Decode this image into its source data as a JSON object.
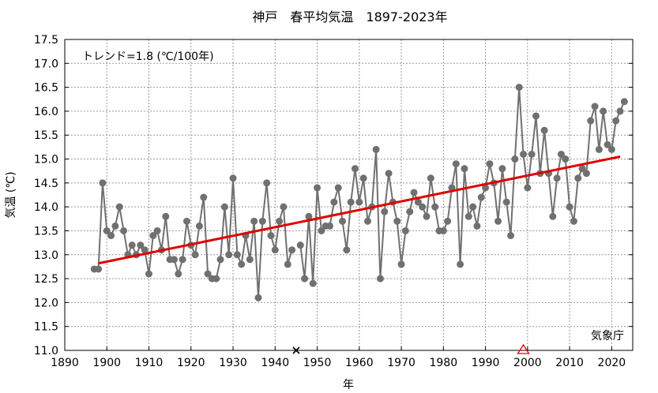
{
  "chart_data": {
    "type": "line",
    "title": "神戸　春平均気温　1897-2023年",
    "xlabel": "年",
    "ylabel": "気温 (℃)",
    "xlim": [
      1890,
      2025
    ],
    "ylim": [
      11.0,
      17.5
    ],
    "xticks": [
      1890,
      1900,
      1910,
      1920,
      1930,
      1940,
      1950,
      1960,
      1970,
      1980,
      1990,
      2000,
      2010,
      2020
    ],
    "yticks": [
      "11.0",
      "11.5",
      "12.0",
      "12.5",
      "13.0",
      "13.5",
      "14.0",
      "14.5",
      "15.0",
      "15.5",
      "16.0",
      "16.5",
      "17.0",
      "17.5"
    ],
    "grid": true,
    "trend_label": "トレンド=1.8 (℃/100年)",
    "source_label": "気象庁",
    "trend": {
      "x": [
        1898,
        2022
      ],
      "y": [
        12.82,
        15.05
      ],
      "color": "#e00000"
    },
    "series_color": "#707070",
    "markers": [
      {
        "year": 1945,
        "symbol": "×",
        "color": "#000000"
      },
      {
        "year": 1999,
        "symbol": "△",
        "color": "#e00000"
      }
    ],
    "x": [
      1897,
      1898,
      1899,
      1900,
      1901,
      1902,
      1903,
      1904,
      1905,
      1906,
      1907,
      1908,
      1909,
      1910,
      1911,
      1912,
      1913,
      1914,
      1915,
      1916,
      1917,
      1918,
      1919,
      1920,
      1921,
      1922,
      1923,
      1924,
      1925,
      1926,
      1927,
      1928,
      1929,
      1930,
      1931,
      1932,
      1933,
      1934,
      1935,
      1936,
      1937,
      1938,
      1939,
      1940,
      1941,
      1942,
      1943,
      1944,
      1945,
      1946,
      1947,
      1948,
      1949,
      1950,
      1951,
      1952,
      1953,
      1954,
      1955,
      1956,
      1957,
      1958,
      1959,
      1960,
      1961,
      1962,
      1963,
      1964,
      1965,
      1966,
      1967,
      1968,
      1969,
      1970,
      1971,
      1972,
      1973,
      1974,
      1975,
      1976,
      1977,
      1978,
      1979,
      1980,
      1981,
      1982,
      1983,
      1984,
      1985,
      1986,
      1987,
      1988,
      1989,
      1990,
      1991,
      1992,
      1993,
      1994,
      1995,
      1996,
      1997,
      1998,
      1999,
      2000,
      2001,
      2002,
      2003,
      2004,
      2005,
      2006,
      2007,
      2008,
      2009,
      2010,
      2011,
      2012,
      2013,
      2014,
      2015,
      2016,
      2017,
      2018,
      2019,
      2020,
      2021,
      2022,
      2023
    ],
    "y": [
      12.7,
      12.7,
      14.5,
      13.5,
      13.4,
      13.6,
      14.0,
      13.5,
      13.0,
      13.2,
      13.0,
      13.2,
      13.1,
      12.6,
      13.4,
      13.5,
      13.1,
      13.8,
      12.9,
      12.9,
      12.6,
      12.9,
      13.7,
      13.2,
      13.0,
      13.6,
      14.2,
      12.6,
      12.5,
      12.5,
      12.9,
      14.0,
      13.0,
      14.6,
      13.0,
      12.8,
      13.4,
      12.9,
      13.7,
      12.1,
      13.7,
      14.5,
      13.4,
      13.1,
      13.7,
      14.0,
      12.8,
      13.1,
      null,
      13.2,
      12.5,
      13.8,
      12.4,
      14.4,
      13.5,
      13.6,
      13.6,
      14.1,
      14.4,
      13.7,
      13.1,
      14.1,
      14.8,
      14.1,
      14.6,
      13.7,
      14.0,
      15.2,
      12.5,
      13.9,
      14.7,
      14.1,
      13.7,
      12.8,
      13.5,
      13.9,
      14.3,
      14.1,
      14.0,
      13.8,
      14.6,
      14.0,
      13.5,
      13.5,
      13.7,
      14.4,
      14.9,
      12.8,
      14.8,
      13.8,
      14.0,
      13.6,
      14.2,
      14.4,
      14.9,
      14.5,
      13.7,
      14.8,
      14.1,
      13.4,
      15.0,
      16.5,
      15.1,
      14.4,
      15.1,
      15.9,
      14.7,
      15.6,
      14.7,
      13.8,
      14.6,
      15.1,
      15.0,
      14.0,
      13.7,
      14.6,
      14.8,
      14.7,
      15.8,
      16.1,
      15.2,
      16.0,
      15.3,
      15.2,
      15.8,
      16.0,
      16.2
    ]
  }
}
